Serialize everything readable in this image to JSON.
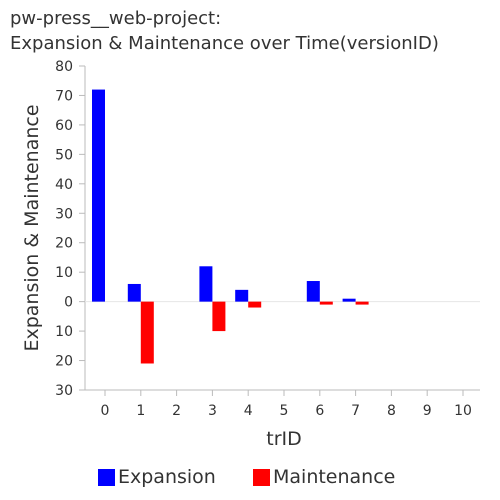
{
  "title_lines": [
    "pw-press__web-project:",
    "Expansion & Maintenance over Time(versionID)"
  ],
  "chart_data": {
    "type": "bar",
    "title": "pw-press__web-project: Expansion & Maintenance over Time(versionID)",
    "xlabel": "trID",
    "ylabel": "Expansion & Maintenance",
    "categories": [
      "0",
      "1",
      "2",
      "3",
      "4",
      "5",
      "6",
      "7",
      "8",
      "9",
      "10"
    ],
    "x": [
      0,
      1,
      2,
      3,
      4,
      5,
      6,
      7,
      8,
      9,
      10
    ],
    "series": [
      {
        "name": "Expansion",
        "color": "#0000ff",
        "values": [
          72,
          6,
          0,
          12,
          4,
          0,
          7,
          1,
          0,
          0,
          0
        ]
      },
      {
        "name": "Maintenance",
        "color": "#ff0000",
        "values": [
          0,
          -21,
          0,
          -10,
          -2,
          0,
          -1,
          -1,
          0,
          0,
          0
        ]
      }
    ],
    "ylim": [
      -30,
      80
    ],
    "yticks": [
      80,
      70,
      60,
      50,
      40,
      30,
      20,
      10,
      0,
      -10,
      -20,
      -30
    ],
    "ytick_labels": [
      "80",
      "70",
      "60",
      "50",
      "40",
      "30",
      "20",
      "10",
      "0",
      "10",
      "20",
      "30"
    ],
    "grid": false,
    "legend_position": "bottom"
  }
}
